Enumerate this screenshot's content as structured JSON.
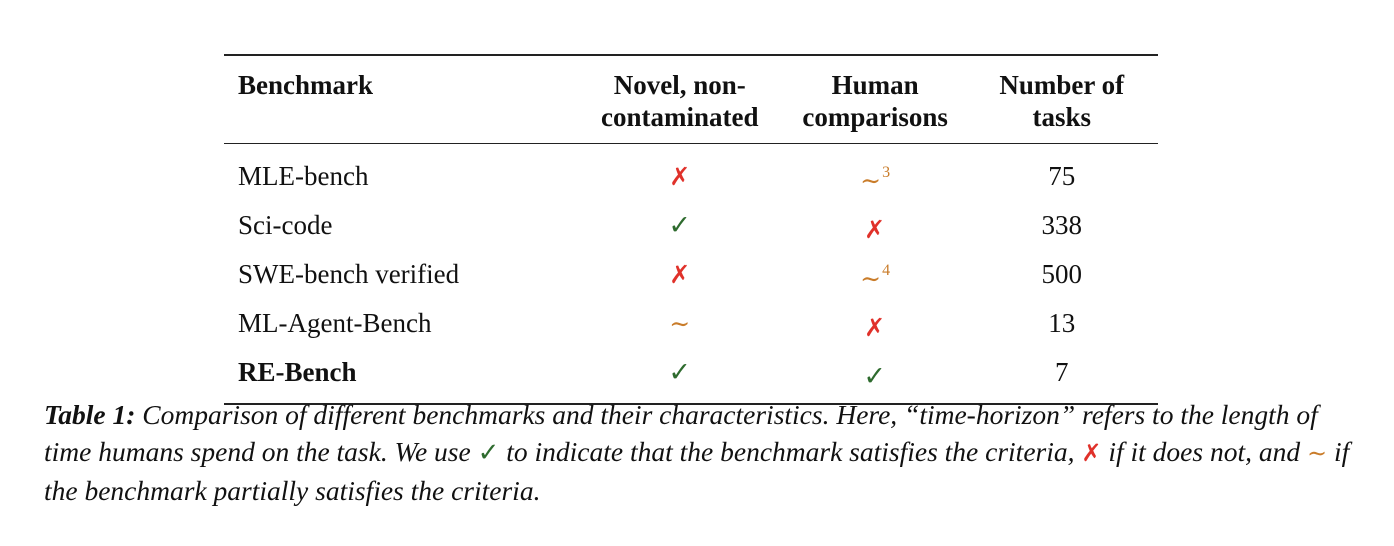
{
  "table": {
    "headers": {
      "benchmark": "Benchmark",
      "novel_line1": "Novel, non-",
      "novel_line2": "contaminated",
      "human_line1": "Human",
      "human_line2": "comparisons",
      "tasks_line1": "Number of",
      "tasks_line2": "tasks"
    },
    "rows": [
      {
        "name": "MLE-bench",
        "novel": "✗",
        "human": "∼",
        "human_note": "3",
        "tasks": "75"
      },
      {
        "name": "Sci-code",
        "novel": "✓",
        "human": "✗",
        "human_note": "",
        "tasks": "338"
      },
      {
        "name": "SWE-bench verified",
        "novel": "✗",
        "human": "∼",
        "human_note": "4",
        "tasks": "500"
      },
      {
        "name": "ML-Agent-Bench",
        "novel": "∼",
        "human": "✗",
        "human_note": "",
        "tasks": "13"
      },
      {
        "name": "RE-Bench",
        "novel": "✓",
        "human": "✓",
        "human_note": "",
        "tasks": "7"
      }
    ]
  },
  "caption": {
    "label": "Table 1:",
    "text_part1": " Comparison of different benchmarks and their characteristics. Here, “time-horizon” refers to the length of time humans spend on the task. We use ",
    "check_symbol": "✓",
    "text_part2": " to indicate that the benchmark satisfies the criteria, ",
    "cross_symbol": "✗",
    "text_part3": " if it does not, and ",
    "partial_symbol": "∼",
    "text_part4": " if the benchmark partially satisfies the criteria."
  },
  "colors": {
    "check": "#2e6b2e",
    "cross": "#e0312a",
    "partial": "#c97c2a"
  },
  "icons": {
    "check": "check-icon",
    "cross": "cross-icon",
    "partial": "tilde-icon"
  }
}
